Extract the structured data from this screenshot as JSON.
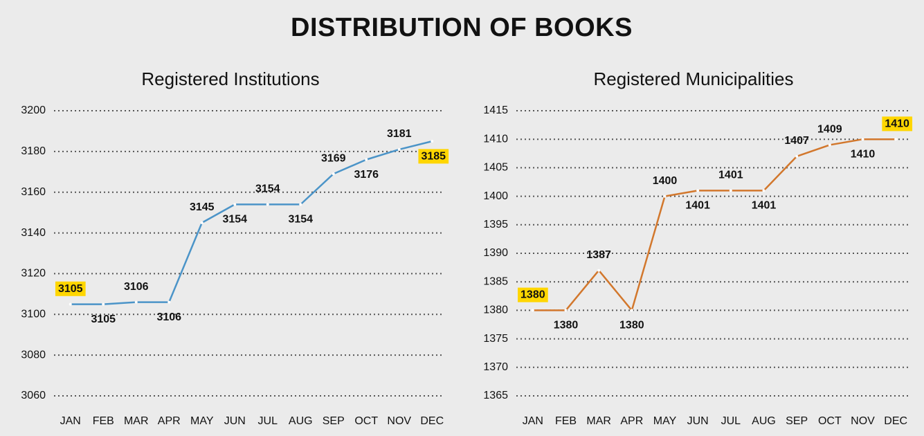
{
  "title": "DISTRIBUTION OF BOOKS",
  "chart_data": [
    {
      "type": "line",
      "title": "Registered Institutions",
      "categories": [
        "JAN",
        "FEB",
        "MAR",
        "APR",
        "MAY",
        "JUN",
        "JUL",
        "AUG",
        "SEP",
        "OCT",
        "NOV",
        "DEC"
      ],
      "values": [
        3105,
        3105,
        3106,
        3106,
        3145,
        3154,
        3154,
        3154,
        3169,
        3176,
        3181,
        3185
      ],
      "color": "#4b94c8",
      "ylim": [
        3060,
        3200
      ],
      "yticks": [
        3060,
        3080,
        3100,
        3120,
        3140,
        3160,
        3180,
        3200
      ],
      "grid": true
    },
    {
      "type": "line",
      "title": "Registered Municipalities",
      "categories": [
        "JAN",
        "FEB",
        "MAR",
        "APR",
        "MAY",
        "JUN",
        "JUL",
        "AUG",
        "SEP",
        "OCT",
        "NOV",
        "DEC"
      ],
      "values": [
        1380,
        1380,
        1387,
        1380,
        1400,
        1401,
        1401,
        1401,
        1407,
        1409,
        1410,
        1410
      ],
      "color": "#d2772c",
      "ylim": [
        1365,
        1415
      ],
      "yticks": [
        1365,
        1370,
        1375,
        1380,
        1385,
        1390,
        1395,
        1400,
        1405,
        1410,
        1415
      ],
      "grid": true
    }
  ]
}
